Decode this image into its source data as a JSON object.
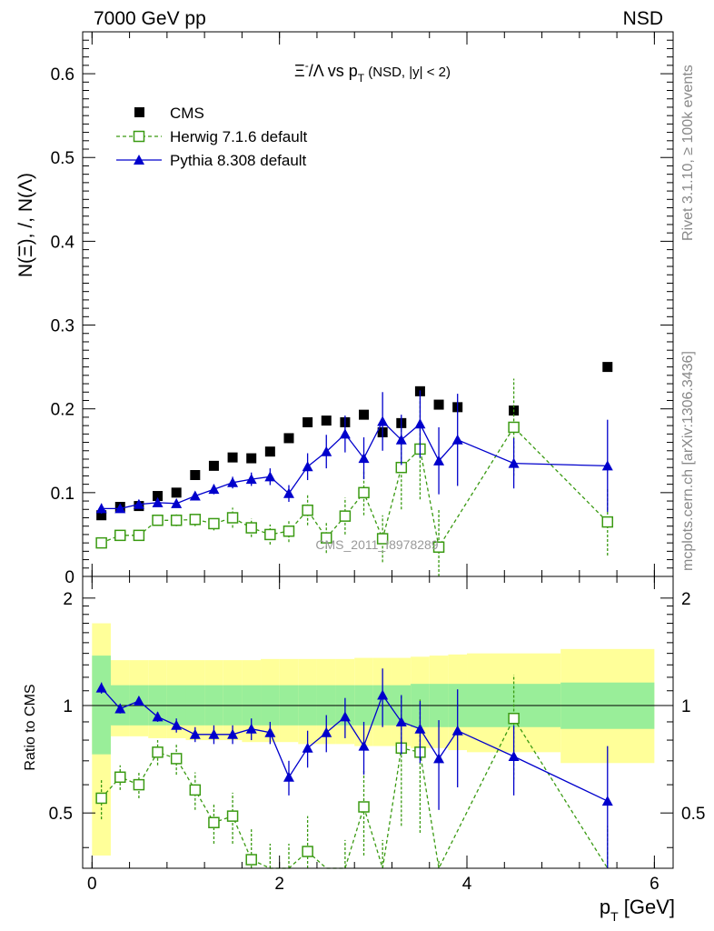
{
  "header": {
    "left": "7000 GeV pp",
    "right": "NSD"
  },
  "side_text": {
    "top": "Rivet 3.1.10, ≥ 100k events",
    "bottom": "mcplots.cern.ch [arXiv:1306.3436]"
  },
  "watermark": "CMS_2011_I8978289",
  "colors": {
    "cms": "#000000",
    "herwig": "#3a9a12",
    "pythia": "#0000cc",
    "band_inner": "#99ee99",
    "band_outer": "#ffff99"
  },
  "chart_data": [
    {
      "type": "scatter",
      "panel": "main",
      "title": "Ξ⁻/Λ vs p_T (NSD, |y| < 2)",
      "title_parts": {
        "main": "Ξ",
        "sup": "-",
        "mid": "/Λ  vs p",
        "sub": "T",
        "tail": " (NSD, |y| < 2)"
      },
      "ylabel": "N(Ξ), /, N(Λ)",
      "xlim": [
        -0.1,
        6.2
      ],
      "ylim": [
        0,
        0.65
      ],
      "yticks": [
        0,
        0.1,
        0.2,
        0.3,
        0.4,
        0.5,
        0.6
      ],
      "ytick_labels": [
        "0",
        "0.1",
        "0.2",
        "0.3",
        "0.4",
        "0.5",
        "0.6"
      ],
      "legend_position": "top-left",
      "series": [
        {
          "name": "CMS",
          "marker": "filled-square",
          "line": "none",
          "x": [
            0.1,
            0.3,
            0.5,
            0.7,
            0.9,
            1.1,
            1.3,
            1.5,
            1.7,
            1.9,
            2.1,
            2.3,
            2.5,
            2.7,
            2.9,
            3.1,
            3.3,
            3.5,
            3.7,
            3.9,
            4.5,
            5.5
          ],
          "y": [
            0.073,
            0.083,
            0.084,
            0.096,
            0.1,
            0.121,
            0.132,
            0.142,
            0.141,
            0.149,
            0.165,
            0.184,
            0.186,
            0.184,
            0.193,
            0.172,
            0.183,
            0.221,
            0.205,
            0.202,
            0.198,
            0.25
          ]
        },
        {
          "name": "Herwig 7.1.6 default",
          "marker": "open-square",
          "line": "dashed",
          "x": [
            0.1,
            0.3,
            0.5,
            0.7,
            0.9,
            1.1,
            1.3,
            1.5,
            1.7,
            1.9,
            2.1,
            2.3,
            2.5,
            2.7,
            2.9,
            3.1,
            3.3,
            3.5,
            3.7,
            4.5,
            5.5
          ],
          "y": [
            0.04,
            0.049,
            0.049,
            0.067,
            0.067,
            0.068,
            0.063,
            0.07,
            0.058,
            0.05,
            0.054,
            0.079,
            0.046,
            0.072,
            0.1,
            0.045,
            0.13,
            0.152,
            0.035,
            0.178,
            0.065
          ],
          "err": [
            0.005,
            0.004,
            0.004,
            0.006,
            0.007,
            0.008,
            0.008,
            0.012,
            0.011,
            0.012,
            0.013,
            0.018,
            0.018,
            0.022,
            0.027,
            0.028,
            0.05,
            0.06,
            0.045,
            0.058,
            0.04
          ]
        },
        {
          "name": "Pythia 8.308 default",
          "marker": "filled-triangle",
          "line": "solid",
          "x": [
            0.1,
            0.3,
            0.5,
            0.7,
            0.9,
            1.1,
            1.3,
            1.5,
            1.7,
            1.9,
            2.1,
            2.3,
            2.5,
            2.7,
            2.9,
            3.1,
            3.3,
            3.5,
            3.7,
            3.9,
            4.5,
            5.5
          ],
          "y": [
            0.081,
            0.081,
            0.086,
            0.088,
            0.087,
            0.096,
            0.104,
            0.112,
            0.116,
            0.119,
            0.099,
            0.131,
            0.149,
            0.17,
            0.141,
            0.185,
            0.163,
            0.182,
            0.138,
            0.163,
            0.135,
            0.132
          ],
          "err": [
            0.006,
            0.004,
            0.004,
            0.004,
            0.005,
            0.005,
            0.006,
            0.007,
            0.008,
            0.01,
            0.01,
            0.016,
            0.02,
            0.022,
            0.025,
            0.035,
            0.03,
            0.04,
            0.04,
            0.055,
            0.03,
            0.055
          ]
        }
      ]
    },
    {
      "type": "line",
      "panel": "ratio",
      "ylabel": "Ratio to CMS",
      "xlabel": "p_T [GeV]",
      "xlabel_parts": {
        "main": "p",
        "sub": "T",
        "tail": " [GeV]"
      },
      "xlim": [
        -0.1,
        6.2
      ],
      "ylim": [
        0.35,
        2.3
      ],
      "yscale": "log",
      "xticks": [
        0,
        2,
        4,
        6
      ],
      "xtick_labels": [
        "0",
        "2",
        "4",
        "6"
      ],
      "yticks": [
        0.5,
        1,
        2
      ],
      "ytick_labels": [
        "0.5",
        "1",
        "2"
      ],
      "reference_line": 1,
      "uncertainty_bands": {
        "edges": [
          0.0,
          0.2,
          0.4,
          0.6,
          0.8,
          1.0,
          1.2,
          1.4,
          1.6,
          1.8,
          2.0,
          2.2,
          2.4,
          2.6,
          2.8,
          3.0,
          3.2,
          3.4,
          3.6,
          3.8,
          4.0,
          5.0,
          6.0
        ],
        "inner_lo": [
          0.73,
          0.88,
          0.88,
          0.88,
          0.88,
          0.88,
          0.88,
          0.88,
          0.88,
          0.88,
          0.88,
          0.88,
          0.88,
          0.88,
          0.88,
          0.88,
          0.88,
          0.87,
          0.87,
          0.87,
          0.87,
          0.86
        ],
        "inner_hi": [
          1.38,
          1.14,
          1.14,
          1.14,
          1.14,
          1.14,
          1.14,
          1.14,
          1.14,
          1.14,
          1.14,
          1.14,
          1.14,
          1.14,
          1.14,
          1.14,
          1.14,
          1.15,
          1.15,
          1.15,
          1.15,
          1.16
        ],
        "outer_lo": [
          0.38,
          0.82,
          0.82,
          0.81,
          0.81,
          0.8,
          0.8,
          0.8,
          0.79,
          0.79,
          0.79,
          0.78,
          0.78,
          0.78,
          0.77,
          0.77,
          0.77,
          0.76,
          0.76,
          0.75,
          0.74,
          0.69
        ],
        "outer_hi": [
          1.7,
          1.34,
          1.34,
          1.34,
          1.34,
          1.34,
          1.34,
          1.34,
          1.34,
          1.35,
          1.35,
          1.35,
          1.35,
          1.35,
          1.36,
          1.36,
          1.36,
          1.37,
          1.38,
          1.39,
          1.4,
          1.44
        ]
      },
      "series": [
        {
          "name": "Herwig 7.1.6 default",
          "marker": "open-square",
          "line": "dashed",
          "x": [
            0.1,
            0.3,
            0.5,
            0.7,
            0.9,
            1.1,
            1.3,
            1.5,
            1.7,
            1.9,
            2.1,
            2.3,
            2.5,
            2.7,
            2.9,
            3.1,
            3.3,
            3.5,
            3.7,
            4.5,
            5.5
          ],
          "y": [
            0.55,
            0.63,
            0.6,
            0.74,
            0.71,
            0.58,
            0.47,
            0.49,
            0.37,
            0.33,
            0.33,
            0.39,
            0.25,
            0.3,
            0.52,
            0.26,
            0.76,
            0.74,
            0.17,
            0.92,
            0.26
          ],
          "err": [
            0.07,
            0.05,
            0.05,
            0.06,
            0.07,
            0.07,
            0.06,
            0.08,
            0.08,
            0.08,
            0.08,
            0.1,
            0.1,
            0.12,
            0.14,
            0.16,
            0.3,
            0.3,
            0.2,
            0.3,
            0.2
          ]
        },
        {
          "name": "Pythia 8.308 default",
          "marker": "filled-triangle",
          "line": "solid",
          "x": [
            0.1,
            0.3,
            0.5,
            0.7,
            0.9,
            1.1,
            1.3,
            1.5,
            1.7,
            1.9,
            2.1,
            2.3,
            2.5,
            2.7,
            2.9,
            3.1,
            3.3,
            3.5,
            3.7,
            3.9,
            4.5,
            5.5
          ],
          "y": [
            1.12,
            0.98,
            1.03,
            0.93,
            0.88,
            0.83,
            0.83,
            0.83,
            0.86,
            0.84,
            0.63,
            0.76,
            0.84,
            0.93,
            0.77,
            1.07,
            0.9,
            0.86,
            0.71,
            0.85,
            0.72,
            0.54
          ],
          "err": [
            0.04,
            0.03,
            0.03,
            0.03,
            0.04,
            0.04,
            0.05,
            0.05,
            0.06,
            0.06,
            0.07,
            0.09,
            0.1,
            0.12,
            0.13,
            0.2,
            0.17,
            0.17,
            0.2,
            0.26,
            0.16,
            0.23
          ]
        }
      ]
    }
  ]
}
